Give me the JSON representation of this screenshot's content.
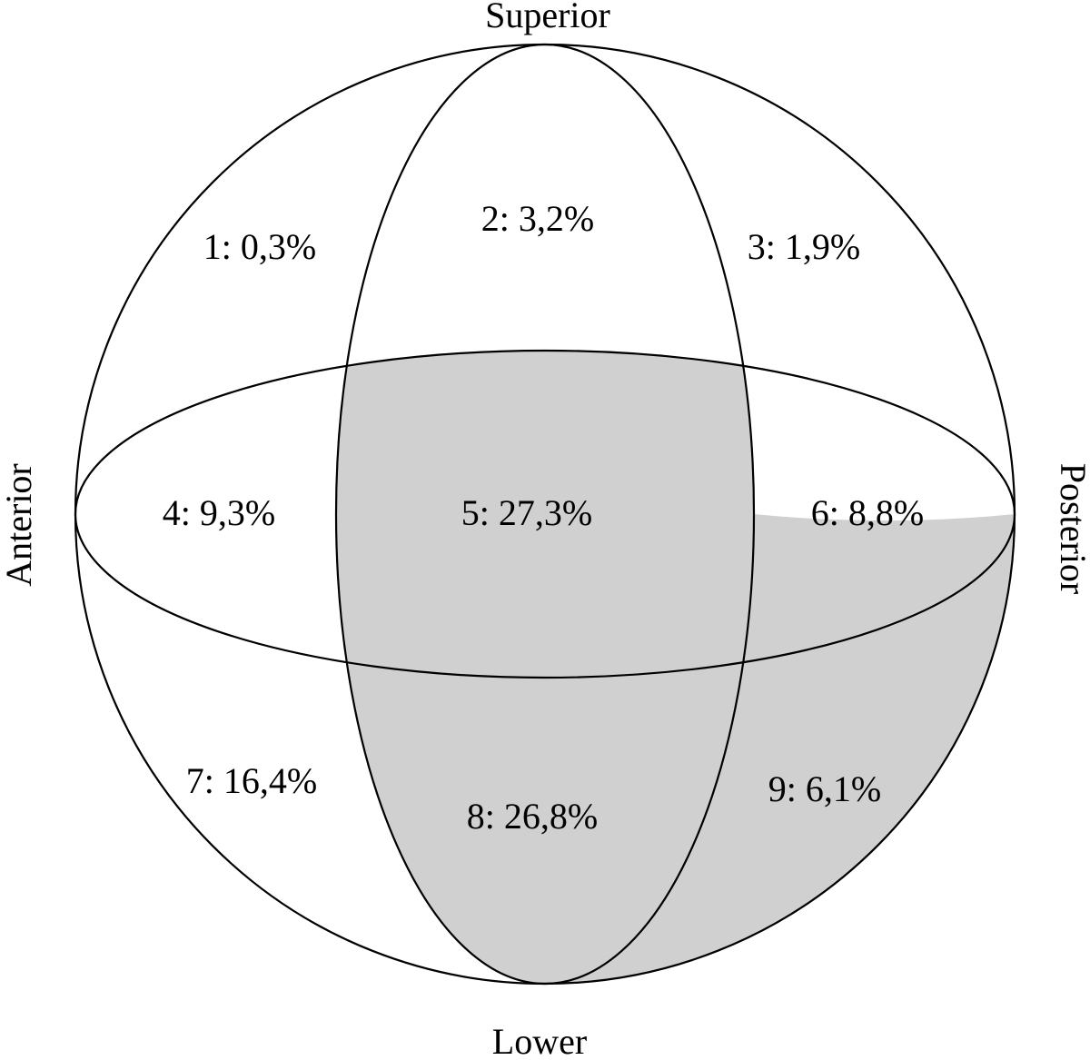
{
  "axis_labels": {
    "top": "Superior",
    "bottom": "Lower",
    "left": "Anterior",
    "right": "Posterior"
  },
  "zones": [
    {
      "label": "1: 0,3%",
      "zone": 1,
      "percent": 0.3,
      "shaded": false
    },
    {
      "label": "2: 3,2%",
      "zone": 2,
      "percent": 3.2,
      "shaded": false
    },
    {
      "label": "3: 1,9%",
      "zone": 3,
      "percent": 1.9,
      "shaded": false
    },
    {
      "label": "4: 9,3%",
      "zone": 4,
      "percent": 9.3,
      "shaded": false
    },
    {
      "label": "5: 27,3%",
      "zone": 5,
      "percent": 27.3,
      "shaded": true
    },
    {
      "label": "6: 8,8%",
      "zone": 6,
      "percent": 8.8,
      "shaded": false
    },
    {
      "label": "7: 16,4%",
      "zone": 7,
      "percent": 16.4,
      "shaded": false
    },
    {
      "label": "8: 26,8%",
      "zone": 8,
      "percent": 26.8,
      "shaded": true
    },
    {
      "label": "9: 6,1%",
      "zone": 9,
      "percent": 6.1,
      "shaded": true
    }
  ],
  "colors": {
    "shade": "#d0d0d0",
    "line": "#000000",
    "background": "#ffffff"
  }
}
